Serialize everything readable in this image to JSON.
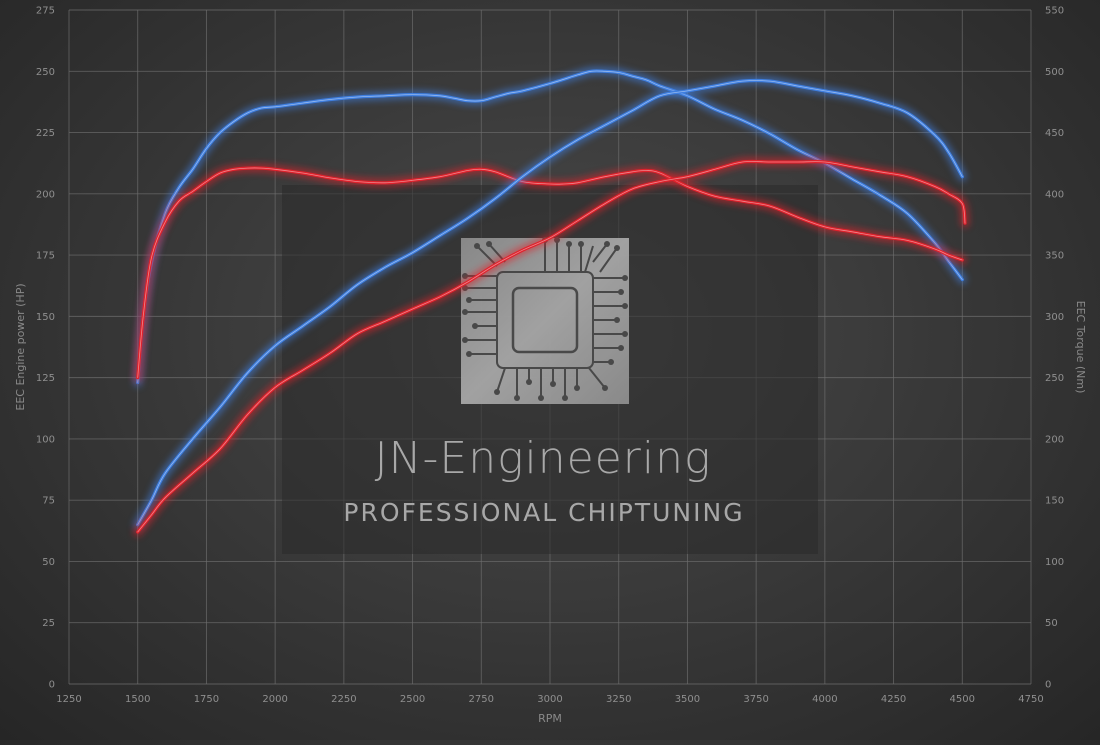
{
  "chart_data": {
    "type": "line",
    "x_label": "RPM",
    "y_left_label": "EEC Engine power (HP)",
    "y_right_label": "EEC Torque (Nm)",
    "x_range": [
      1250,
      4750
    ],
    "x_ticks": [
      1250,
      1500,
      1750,
      2000,
      2250,
      2500,
      2750,
      3000,
      3250,
      3500,
      3750,
      4000,
      4250,
      4500,
      4750
    ],
    "y_left_range": [
      0,
      275
    ],
    "y_left_ticks": [
      0,
      25,
      50,
      75,
      100,
      125,
      150,
      175,
      200,
      225,
      250,
      275
    ],
    "y_right_range": [
      0,
      550
    ],
    "y_right_ticks": [
      0,
      50,
      100,
      150,
      200,
      250,
      300,
      350,
      400,
      450,
      500,
      550
    ],
    "grid": true,
    "colors": {
      "tuned": "#3f7fe0",
      "stock": "#e0222c"
    },
    "series": [
      {
        "axis": "right",
        "variant": "tuned",
        "color": "#3f7fe0",
        "x": [
          1500,
          1520,
          1550,
          1600,
          1650,
          1700,
          1750,
          1800,
          1850,
          1900,
          1950,
          2000,
          2100,
          2200,
          2300,
          2400,
          2500,
          2600,
          2650,
          2700,
          2750,
          2800,
          2850,
          2900,
          3000,
          3100,
          3150,
          3200,
          3250,
          3300,
          3350,
          3400,
          3500,
          3600,
          3700,
          3800,
          3900,
          4000,
          4100,
          4200,
          4300,
          4400,
          4450,
          4500
        ],
        "y": [
          246,
          300,
          344,
          384,
          405,
          420,
          437,
          450,
          459,
          466,
          470,
          471,
          474,
          477,
          479,
          480,
          481,
          480,
          478,
          476,
          476,
          479,
          482,
          484,
          490,
          497,
          500,
          500,
          499,
          496,
          493,
          488,
          480,
          469,
          460,
          449,
          436,
          425,
          412,
          399,
          384,
          360,
          345,
          330
        ]
      },
      {
        "axis": "right",
        "variant": "stock",
        "color": "#e0222c",
        "x": [
          1500,
          1520,
          1550,
          1600,
          1650,
          1700,
          1750,
          1800,
          1850,
          1900,
          1950,
          2000,
          2100,
          2200,
          2300,
          2400,
          2500,
          2600,
          2700,
          2750,
          2800,
          2900,
          3000,
          3050,
          3100,
          3200,
          3300,
          3350,
          3400,
          3500,
          3600,
          3700,
          3800,
          3900,
          4000,
          4100,
          4200,
          4300,
          4400,
          4450,
          4500
        ],
        "y": [
          250,
          300,
          348,
          377,
          394,
          402,
          410,
          417,
          420,
          421,
          421,
          420,
          417,
          413,
          410,
          409,
          411,
          414,
          419,
          420,
          418,
          410,
          408,
          408,
          409,
          414,
          418,
          419,
          417,
          406,
          398,
          394,
          390,
          381,
          373,
          369,
          365,
          362,
          355,
          350,
          346
        ]
      },
      {
        "axis": "left",
        "variant": "tuned",
        "color": "#3f7fe0",
        "x": [
          1500,
          1550,
          1600,
          1700,
          1800,
          1900,
          2000,
          2100,
          2200,
          2300,
          2400,
          2500,
          2600,
          2700,
          2800,
          2900,
          3000,
          3100,
          3200,
          3300,
          3400,
          3500,
          3600,
          3700,
          3800,
          3900,
          4000,
          4100,
          4200,
          4300,
          4400,
          4450,
          4500
        ],
        "y": [
          65,
          75,
          86,
          100,
          113,
          127,
          138,
          146,
          154,
          163,
          170,
          176,
          183,
          190,
          198,
          207,
          215,
          222,
          228,
          234,
          240,
          242,
          244,
          246,
          246,
          244,
          242,
          240,
          237,
          233,
          224,
          217,
          207
        ]
      },
      {
        "axis": "left",
        "variant": "stock",
        "color": "#e0222c",
        "x": [
          1500,
          1550,
          1600,
          1700,
          1800,
          1900,
          2000,
          2100,
          2200,
          2300,
          2400,
          2500,
          2600,
          2700,
          2800,
          2900,
          3000,
          3100,
          3200,
          3300,
          3400,
          3500,
          3600,
          3700,
          3800,
          3900,
          4000,
          4100,
          4200,
          4300,
          4400,
          4450,
          4500,
          4510
        ],
        "y": [
          62,
          69,
          76,
          86,
          96,
          110,
          121,
          128,
          135,
          143,
          148,
          153,
          158,
          164,
          171,
          177,
          182,
          189,
          196,
          202,
          205,
          207,
          210,
          213,
          213,
          213,
          213,
          211,
          209,
          207,
          203,
          200,
          196,
          188
        ]
      }
    ]
  },
  "watermark": {
    "title": "JN-Engineering",
    "subtitle": "PROFESSIONAL CHIPTUNING"
  }
}
